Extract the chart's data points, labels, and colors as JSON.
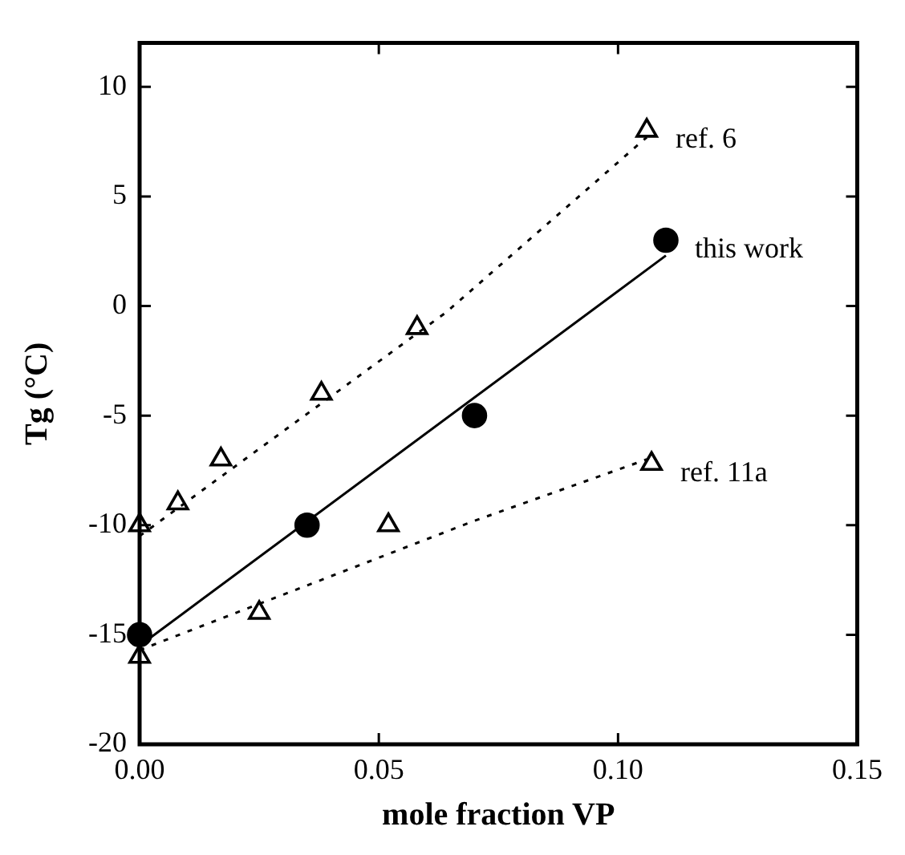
{
  "chart_data": {
    "type": "scatter",
    "xlabel": "mole fraction VP",
    "ylabel": "Tg (°C)",
    "xlim": [
      0,
      0.15
    ],
    "xticks": [
      {
        "value": 0,
        "label": "0.00"
      },
      {
        "value": 0.05,
        "label": "0.05"
      },
      {
        "value": 0.1,
        "label": "0.10"
      },
      {
        "value": 0.15,
        "label": "0.15"
      }
    ],
    "ylim": [
      -20,
      12
    ],
    "yticks": [
      -20,
      -15,
      -10,
      -5,
      0,
      5,
      10
    ],
    "grid": false,
    "legend": false,
    "series": [
      {
        "name": "ref. 6",
        "marker": "triangle",
        "color": "#000000",
        "x": [
          0,
          0.008,
          0.017,
          0.038,
          0.058,
          0.106
        ],
        "values": [
          -10,
          -9,
          -7,
          -4,
          -1,
          8
        ]
      },
      {
        "name": "this work",
        "marker": "circle",
        "color": "#000000",
        "x": [
          0,
          0.035,
          0.07,
          0.11
        ],
        "values": [
          -15,
          -10,
          -5,
          3
        ]
      },
      {
        "name": "ref. 11a",
        "marker": "triangle",
        "color": "#000000",
        "x": [
          0,
          0.025,
          0.052,
          0.107
        ],
        "values": [
          -16,
          -14,
          -10,
          -7.2
        ]
      },
      {
        "type": "line",
        "line_style": "dotted",
        "color": "#000000",
        "x": [
          0,
          0.064,
          0.106
        ],
        "values": [
          -10.5,
          -0.3,
          7.7
        ]
      },
      {
        "type": "line",
        "line_style": "solid",
        "color": "#000000",
        "x": [
          0,
          0.11
        ],
        "values": [
          -15.5,
          2.3
        ]
      },
      {
        "type": "line",
        "line_style": "dotted",
        "color": "#000000",
        "x": [
          0,
          0.07,
          0.106
        ],
        "values": [
          -15.7,
          -9.8,
          -7.0
        ]
      }
    ]
  }
}
